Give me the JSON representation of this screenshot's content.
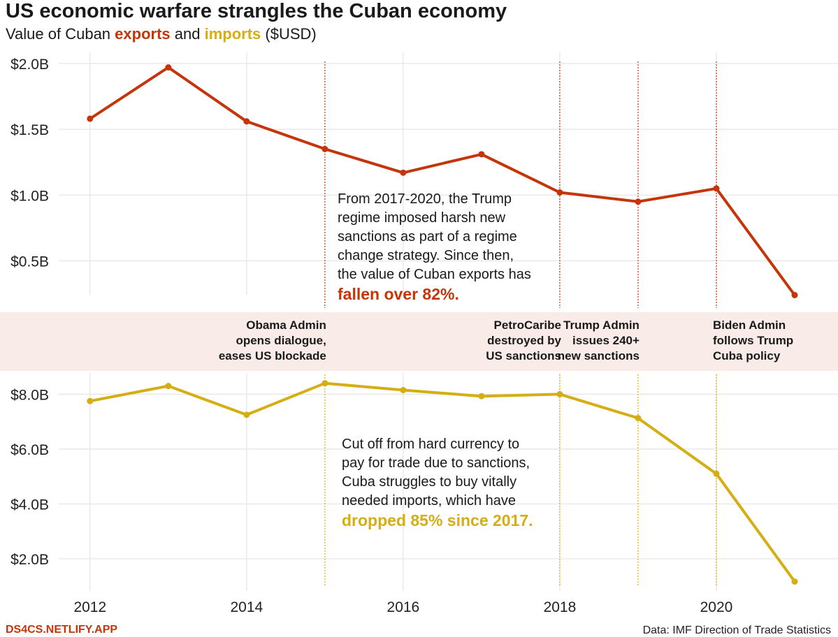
{
  "title": "US economic warfare strangles the Cuban economy",
  "subtitle": {
    "prefix": "Value of Cuban ",
    "exports_word": "exports",
    "middle": " and ",
    "imports_word": "imports",
    "suffix": " ($USD)"
  },
  "colors": {
    "exports": "#c4350a",
    "imports": "#d4ae12",
    "band": "#f9ebe8",
    "grid": "#e6e6e6"
  },
  "chart_data": [
    {
      "type": "line",
      "name": "exports",
      "x": [
        2012,
        2013,
        2014,
        2015,
        2016,
        2017,
        2018,
        2019,
        2020,
        2021
      ],
      "values": [
        1.58,
        1.97,
        1.56,
        1.35,
        1.17,
        1.31,
        1.02,
        0.95,
        1.05,
        0.24
      ],
      "yticks": [
        {
          "v": 0.5,
          "label": "$0.5B"
        },
        {
          "v": 1.0,
          "label": "$1.0B"
        },
        {
          "v": 1.5,
          "label": "$1.5B"
        },
        {
          "v": 2.0,
          "label": "$2.0B"
        }
      ],
      "ylim": [
        0.11,
        2.1
      ],
      "annotation": {
        "lines": [
          "From 2017-2020, the Trump",
          "regime imposed harsh new",
          "sanctions as part of a regime",
          "change strategy. Since then,",
          "the value of Cuban exports has"
        ],
        "emphasis": "fallen over 82%."
      }
    },
    {
      "type": "line",
      "name": "imports",
      "x": [
        2012,
        2013,
        2014,
        2015,
        2016,
        2017,
        2018,
        2019,
        2020,
        2021
      ],
      "values": [
        7.75,
        8.3,
        7.25,
        8.4,
        8.15,
        7.93,
        8.0,
        7.13,
        5.1,
        1.17
      ],
      "yticks": [
        {
          "v": 2,
          "label": "$2.0B"
        },
        {
          "v": 4,
          "label": "$4.0B"
        },
        {
          "v": 6,
          "label": "$6.0B"
        },
        {
          "v": 8,
          "label": "$8.0B"
        }
      ],
      "ylim": [
        0.6,
        8.8
      ],
      "annotation": {
        "lines": [
          "Cut off from hard currency to",
          "pay for trade due to sanctions,",
          "Cuba struggles to buy vitally",
          "needed imports, which have"
        ],
        "emphasis": "dropped 85% since 2017."
      }
    }
  ],
  "xaxis": {
    "ticks": [
      2012,
      2014,
      2016,
      2018,
      2020
    ],
    "xlim": [
      2011.6,
      2021.5
    ]
  },
  "events": [
    {
      "x": 2015,
      "lines": [
        "Obama Admin",
        "opens dialogue,",
        "eases US blockade"
      ]
    },
    {
      "x": 2018,
      "lines": [
        "PetroCaribe",
        "destroyed by",
        "US sanctions"
      ]
    },
    {
      "x": 2019,
      "lines": [
        "Trump Admin",
        "issues 240+",
        "new sanctions"
      ]
    },
    {
      "x": 2020,
      "lines": [
        "Biden Admin",
        "follows Trump",
        "Cuba policy"
      ],
      "align": "left"
    }
  ],
  "footer": {
    "site": "DS4CS.NETLIFY.APP",
    "source": "Data: IMF Direction of Trade Statistics"
  }
}
